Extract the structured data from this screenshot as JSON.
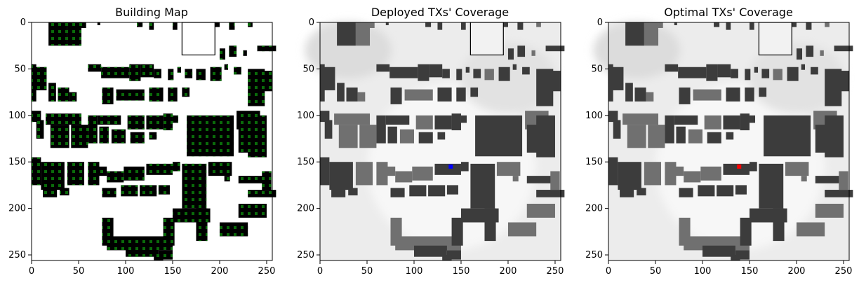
{
  "chart_data": [
    {
      "type": "heatmap",
      "title": "Building Map",
      "xlabel": "",
      "ylabel": "",
      "xlim": [
        0,
        256
      ],
      "ylim": [
        256,
        0
      ],
      "xticks": [
        0,
        50,
        100,
        150,
        200,
        250
      ],
      "yticks": [
        0,
        50,
        100,
        150,
        200,
        250
      ],
      "style": "binary-map-with-grid-points",
      "colors": {
        "background": "#ffffff",
        "building": "#000000",
        "grid_point": "#0a6b0a"
      }
    },
    {
      "type": "heatmap",
      "title": "Deployed TXs' Coverage",
      "xlabel": "",
      "ylabel": "",
      "xlim": [
        0,
        256
      ],
      "ylim": [
        256,
        0
      ],
      "xticks": [
        0,
        50,
        100,
        150,
        200,
        250
      ],
      "yticks": [
        0,
        50,
        100,
        150,
        200,
        250
      ],
      "style": "coverage-grayscale",
      "tx_marker": {
        "x": 139,
        "y": 155,
        "color": "#0000ff"
      }
    },
    {
      "type": "heatmap",
      "title": "Optimal TXs' Coverage",
      "xlabel": "",
      "ylabel": "",
      "xlim": [
        0,
        256
      ],
      "ylim": [
        256,
        0
      ],
      "xticks": [
        0,
        50,
        100,
        150,
        200,
        250
      ],
      "yticks": [
        0,
        50,
        100,
        150,
        200,
        250
      ],
      "style": "coverage-grayscale",
      "tx_marker": {
        "x": 139,
        "y": 155,
        "color": "#ff0000"
      }
    }
  ]
}
